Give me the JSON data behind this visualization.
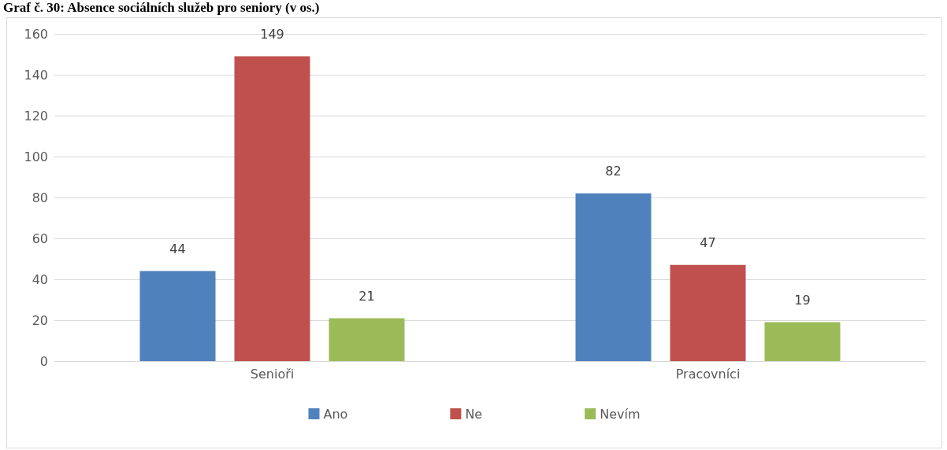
{
  "chart_data": {
    "type": "bar",
    "title": "Graf č. 30: Absence sociálních služeb pro seniory (v os.)",
    "categories": [
      "Senioři",
      "Pracovníci"
    ],
    "series": [
      {
        "name": "Ano",
        "color": "#4f81bd",
        "values": [
          44,
          82
        ]
      },
      {
        "name": "Ne",
        "color": "#c0504d",
        "values": [
          149,
          47
        ]
      },
      {
        "name": "Nevím",
        "color": "#9bbb59",
        "values": [
          21,
          19
        ]
      }
    ],
    "ylim": [
      0,
      160
    ],
    "yticks": [
      0,
      20,
      40,
      60,
      80,
      100,
      120,
      140,
      160
    ],
    "grid": "y",
    "legend": "bottom",
    "data_labels": true
  }
}
